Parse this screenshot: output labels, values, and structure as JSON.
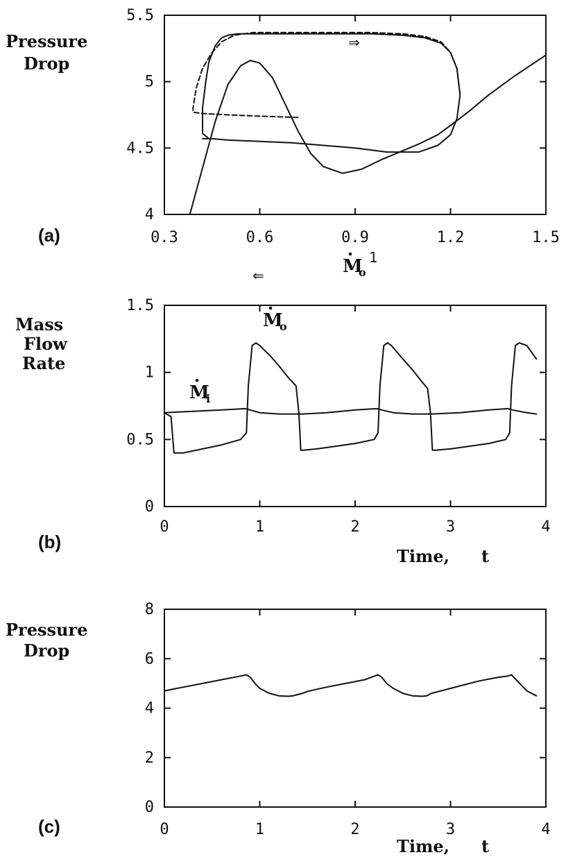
{
  "chart_data": [
    {
      "type": "line",
      "panel_label": "(a)",
      "ylabel_lines": [
        "Pressure",
        "Drop"
      ],
      "xlabel": {
        "base": "M",
        "sub": "o",
        "dot": true
      },
      "xlim": [
        0.3,
        1.5
      ],
      "ylim": [
        4,
        5.5
      ],
      "x_ticks": [
        "0.3",
        "0.6",
        "0.9",
        "1.2",
        "1.5"
      ],
      "y_ticks": [
        "4",
        "4.5",
        "5",
        "5.5"
      ],
      "annotations": {
        "arrow_right": "⇒",
        "arrow_left": "⇐",
        "point_label": "1"
      },
      "series": [
        {
          "style": "solid",
          "x": [
            0.38,
            0.42,
            0.46,
            0.5,
            0.54,
            0.57,
            0.6,
            0.64,
            0.68,
            0.72,
            0.76,
            0.8,
            0.86,
            0.92,
            0.98,
            1.04,
            1.1,
            1.16,
            1.2,
            1.26,
            1.32,
            1.4,
            1.5
          ],
          "y": [
            4.0,
            4.35,
            4.7,
            4.98,
            5.12,
            5.16,
            5.14,
            5.03,
            4.83,
            4.63,
            4.46,
            4.36,
            4.31,
            4.34,
            4.41,
            4.47,
            4.53,
            4.6,
            4.67,
            4.78,
            4.9,
            5.04,
            5.2
          ]
        },
        {
          "style": "solid",
          "x": [
            0.44,
            0.42,
            0.42,
            0.43,
            0.44,
            0.46,
            0.48,
            0.5,
            0.53,
            0.58,
            0.65,
            0.75,
            0.85,
            0.95,
            1.05,
            1.12,
            1.17,
            1.2,
            1.22,
            1.23,
            1.22,
            1.2,
            1.16,
            1.1,
            1.0,
            0.9,
            0.8,
            0.7,
            0.6,
            0.5,
            0.45,
            0.42
          ],
          "y": [
            4.57,
            4.61,
            4.8,
            5.0,
            5.15,
            5.27,
            5.33,
            5.35,
            5.36,
            5.36,
            5.36,
            5.36,
            5.36,
            5.36,
            5.35,
            5.33,
            5.29,
            5.22,
            5.1,
            4.9,
            4.72,
            4.6,
            4.52,
            4.47,
            4.47,
            4.5,
            4.52,
            4.54,
            4.55,
            4.56,
            4.57,
            4.57
          ]
        },
        {
          "style": "dashed",
          "x": [
            0.72,
            0.6,
            0.5,
            0.42,
            0.39,
            0.39,
            0.4,
            0.42,
            0.45,
            0.48,
            0.52,
            0.58,
            0.65,
            0.75,
            0.85,
            0.95,
            1.05,
            1.12,
            1.17,
            1.2,
            1.22,
            1.23
          ],
          "y": [
            4.73,
            4.74,
            4.75,
            4.76,
            4.77,
            4.8,
            4.95,
            5.1,
            5.22,
            5.3,
            5.35,
            5.37,
            5.37,
            5.37,
            5.37,
            5.37,
            5.36,
            5.34,
            5.3,
            5.22,
            5.1,
            4.9
          ]
        }
      ]
    },
    {
      "type": "line",
      "panel_label": "(b)",
      "ylabel_lines": [
        "Mass",
        "Flow",
        "Rate"
      ],
      "xlabel": {
        "text": "Time,",
        "var": "t"
      },
      "xlim": [
        0,
        4
      ],
      "ylim": [
        0,
        1.5
      ],
      "x_ticks": [
        "0",
        "1",
        "2",
        "3",
        "4"
      ],
      "y_ticks": [
        "0",
        "0.5",
        "1",
        "1.5"
      ],
      "series": [
        {
          "name": "M_o",
          "label": {
            "base": "M",
            "sub": "o"
          },
          "x": [
            0.0,
            0.07,
            0.1,
            0.2,
            0.4,
            0.6,
            0.8,
            0.86,
            0.88,
            0.92,
            0.96,
            1.0,
            1.1,
            1.2,
            1.3,
            1.38,
            1.41,
            1.43,
            1.46,
            1.6,
            1.8,
            2.0,
            2.2,
            2.24,
            2.26,
            2.3,
            2.34,
            2.38,
            2.5,
            2.6,
            2.7,
            2.76,
            2.79,
            2.81,
            2.84,
            3.0,
            3.2,
            3.4,
            3.58,
            3.62,
            3.64,
            3.68,
            3.72,
            3.8,
            3.9
          ],
          "y": [
            0.7,
            0.67,
            0.4,
            0.4,
            0.43,
            0.46,
            0.5,
            0.55,
            0.9,
            1.2,
            1.22,
            1.2,
            1.13,
            1.05,
            0.96,
            0.9,
            0.7,
            0.42,
            0.42,
            0.43,
            0.45,
            0.47,
            0.5,
            0.55,
            0.9,
            1.2,
            1.22,
            1.2,
            1.1,
            1.02,
            0.93,
            0.88,
            0.7,
            0.42,
            0.42,
            0.43,
            0.45,
            0.47,
            0.5,
            0.55,
            0.9,
            1.2,
            1.22,
            1.2,
            1.1
          ]
        },
        {
          "name": "M_i",
          "label": {
            "base": "M",
            "sub": "i"
          },
          "x": [
            0.0,
            0.3,
            0.6,
            0.85,
            0.9,
            1.0,
            1.2,
            1.45,
            1.7,
            2.0,
            2.23,
            2.28,
            2.4,
            2.6,
            2.8,
            3.1,
            3.4,
            3.6,
            3.65,
            3.8,
            3.9
          ],
          "y": [
            0.7,
            0.71,
            0.72,
            0.73,
            0.72,
            0.7,
            0.69,
            0.69,
            0.7,
            0.72,
            0.73,
            0.72,
            0.7,
            0.69,
            0.69,
            0.7,
            0.72,
            0.73,
            0.72,
            0.7,
            0.69
          ]
        }
      ]
    },
    {
      "type": "line",
      "panel_label": "(c)",
      "ylabel_lines": [
        "Pressure",
        "Drop"
      ],
      "xlabel": {
        "text": "Time,",
        "var": "t"
      },
      "xlim": [
        0,
        4
      ],
      "ylim": [
        0,
        8
      ],
      "x_ticks": [
        "0",
        "1",
        "2",
        "3",
        "4"
      ],
      "y_ticks": [
        "0",
        "2",
        "4",
        "6",
        "8"
      ],
      "series": [
        {
          "x": [
            0.0,
            0.2,
            0.4,
            0.6,
            0.8,
            0.86,
            0.9,
            0.95,
            1.0,
            1.1,
            1.2,
            1.3,
            1.35,
            1.4,
            1.45,
            1.5,
            1.7,
            1.9,
            2.1,
            2.24,
            2.28,
            2.33,
            2.4,
            2.5,
            2.6,
            2.7,
            2.75,
            2.8,
            2.9,
            3.1,
            3.3,
            3.5,
            3.6,
            3.64,
            3.7,
            3.8,
            3.9
          ],
          "y": [
            4.7,
            4.85,
            5.0,
            5.15,
            5.3,
            5.35,
            5.25,
            5.0,
            4.8,
            4.6,
            4.5,
            4.48,
            4.5,
            4.55,
            4.6,
            4.68,
            4.85,
            5.0,
            5.15,
            5.35,
            5.25,
            5.0,
            4.8,
            4.6,
            4.5,
            4.48,
            4.5,
            4.6,
            4.7,
            4.9,
            5.1,
            5.25,
            5.3,
            5.35,
            5.1,
            4.7,
            4.5
          ]
        }
      ]
    }
  ]
}
